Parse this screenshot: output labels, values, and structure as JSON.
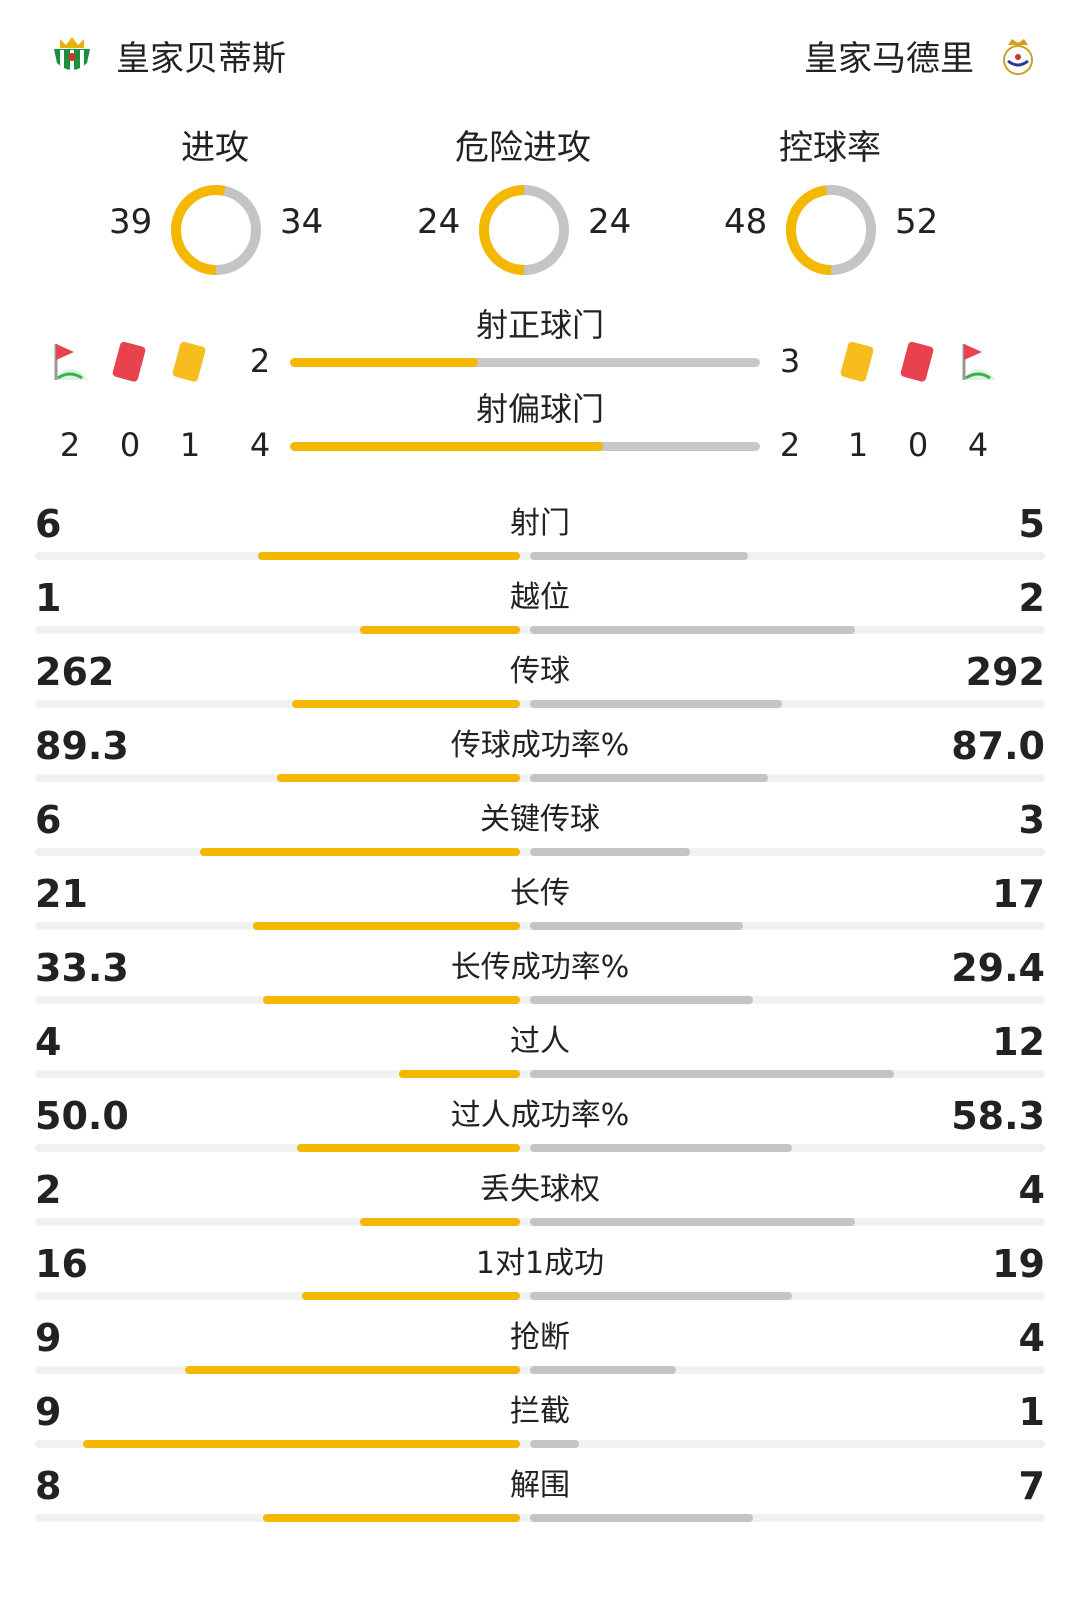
{
  "colors": {
    "home": "#f5b800",
    "away": "#c4c4c4",
    "track": "#f1f1f1"
  },
  "teams": {
    "home": {
      "name": "皇家贝蒂斯",
      "crest_icon": "real-betis-crest-icon"
    },
    "away": {
      "name": "皇家马德里",
      "crest_icon": "real-madrid-crest-icon"
    }
  },
  "donuts": [
    {
      "title": "进攻",
      "home": "39",
      "away": "34"
    },
    {
      "title": "危险进攻",
      "home": "24",
      "away": "24"
    },
    {
      "title": "控球率",
      "home": "48",
      "away": "52"
    }
  ],
  "shots": {
    "on_target": {
      "title": "射正球门",
      "home": "2",
      "away": "3",
      "home_fraction": 0.4
    },
    "off_target": {
      "title": "射偏球门",
      "home": "4",
      "away": "2",
      "home_fraction": 0.667
    }
  },
  "discipline": {
    "home": {
      "corners": "2",
      "red_cards": "0",
      "yellow_cards": "1"
    },
    "away": {
      "yellow_cards": "1",
      "red_cards": "0",
      "corners": "4"
    }
  },
  "stats": [
    {
      "label": "射门",
      "home": "6",
      "away": "5"
    },
    {
      "label": "越位",
      "home": "1",
      "away": "2"
    },
    {
      "label": "传球",
      "home": "262",
      "away": "292"
    },
    {
      "label": "传球成功率%",
      "home": "89.3",
      "away": "87.0"
    },
    {
      "label": "关键传球",
      "home": "6",
      "away": "3"
    },
    {
      "label": "长传",
      "home": "21",
      "away": "17"
    },
    {
      "label": "长传成功率%",
      "home": "33.3",
      "away": "29.4"
    },
    {
      "label": "过人",
      "home": "4",
      "away": "12"
    },
    {
      "label": "过人成功率%",
      "home": "50.0",
      "away": "58.3"
    },
    {
      "label": "丢失球权",
      "home": "2",
      "away": "4"
    },
    {
      "label": "1对1成功",
      "home": "16",
      "away": "19"
    },
    {
      "label": "抢断",
      "home": "9",
      "away": "4"
    },
    {
      "label": "拦截",
      "home": "9",
      "away": "1"
    },
    {
      "label": "解围",
      "home": "8",
      "away": "7"
    }
  ],
  "stat_bar_fraction": [
    [
      0.54,
      0.45
    ],
    [
      0.33,
      0.67
    ],
    [
      0.47,
      0.52
    ],
    [
      0.5,
      0.49
    ],
    [
      0.66,
      0.33
    ],
    [
      0.55,
      0.44
    ],
    [
      0.53,
      0.46
    ],
    [
      0.25,
      0.75
    ],
    [
      0.46,
      0.54
    ],
    [
      0.33,
      0.67
    ],
    [
      0.45,
      0.54
    ],
    [
      0.69,
      0.3
    ],
    [
      0.9,
      0.1
    ],
    [
      0.53,
      0.46
    ]
  ]
}
